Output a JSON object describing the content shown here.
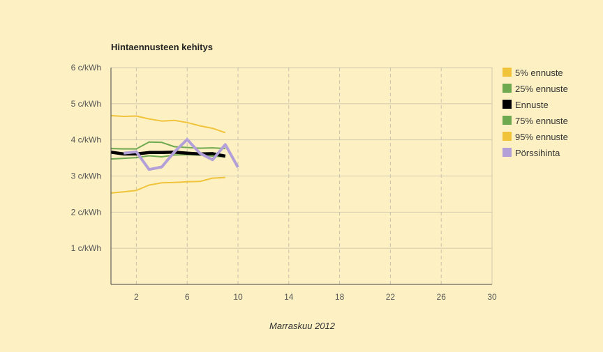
{
  "chart_data": {
    "type": "line",
    "title": "Hintaennusteen kehitys",
    "xlabel": "Marraskuu 2012",
    "ylabel": "",
    "xlim": [
      0,
      30
    ],
    "ylim": [
      0,
      6
    ],
    "x_ticks": [
      2,
      6,
      10,
      14,
      18,
      22,
      26,
      30
    ],
    "y_ticks": [
      {
        "value": 1,
        "label": "1 c/kWh"
      },
      {
        "value": 2,
        "label": "2 c/kWh"
      },
      {
        "value": 3,
        "label": "3 c/kWh"
      },
      {
        "value": 4,
        "label": "4 c/kWh"
      },
      {
        "value": 5,
        "label": "5 c/kWh"
      },
      {
        "value": 6,
        "label": "6 c/kWh"
      }
    ],
    "grid": true,
    "legend_position": "right",
    "series": [
      {
        "name": "5% ennuste",
        "color": "#f0c33a",
        "width": 2,
        "x": [
          0,
          1,
          2,
          3,
          4,
          5,
          6,
          7,
          8,
          9
        ],
        "y": [
          2.53,
          2.56,
          2.6,
          2.75,
          2.81,
          2.82,
          2.84,
          2.85,
          2.94,
          2.96
        ]
      },
      {
        "name": "25% ennuste",
        "color": "#6ea84f",
        "width": 2,
        "x": [
          0,
          1,
          2,
          3,
          4,
          5,
          6,
          7,
          8,
          9
        ],
        "y": [
          3.47,
          3.49,
          3.51,
          3.56,
          3.53,
          3.58,
          3.59,
          3.58,
          3.55,
          3.53
        ]
      },
      {
        "name": "Ennuste",
        "color": "#000000",
        "width": 4.5,
        "x": [
          0,
          1,
          2,
          3,
          4,
          5,
          6,
          7,
          8,
          9
        ],
        "y": [
          3.66,
          3.61,
          3.61,
          3.65,
          3.65,
          3.66,
          3.63,
          3.61,
          3.62,
          3.55
        ]
      },
      {
        "name": "75% ennuste",
        "color": "#6ea84f",
        "width": 2,
        "x": [
          0,
          1,
          2,
          3,
          4,
          5,
          6,
          7,
          8,
          9
        ],
        "y": [
          3.76,
          3.75,
          3.75,
          3.94,
          3.93,
          3.81,
          3.79,
          3.77,
          3.78,
          3.76
        ]
      },
      {
        "name": "95% ennuste",
        "color": "#f0c33a",
        "width": 2,
        "x": [
          0,
          1,
          2,
          3,
          4,
          5,
          6,
          7,
          8,
          9
        ],
        "y": [
          4.67,
          4.65,
          4.66,
          4.58,
          4.52,
          4.54,
          4.48,
          4.39,
          4.32,
          4.2
        ]
      },
      {
        "name": "Pörssihinta",
        "color": "#b3a0d8",
        "width": 4,
        "x": [
          1,
          2,
          3,
          4,
          5,
          6,
          7,
          8,
          9,
          10
        ],
        "y": [
          3.63,
          3.67,
          3.18,
          3.25,
          3.67,
          4.01,
          3.63,
          3.45,
          3.87,
          3.24
        ]
      }
    ]
  }
}
